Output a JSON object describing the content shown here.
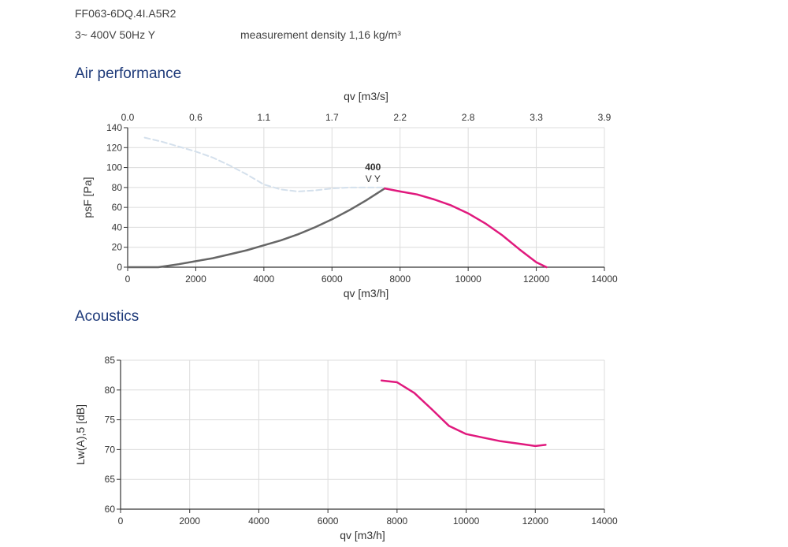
{
  "header": {
    "model": "FF063-6DQ.4I.A5R2",
    "voltage": "3~ 400V 50Hz Y",
    "density": "measurement density 1,16 kg/m³"
  },
  "sections": {
    "air_performance": "Air performance",
    "acoustics": "Acoustics"
  },
  "chart_data": [
    {
      "type": "line",
      "title": "Air performance",
      "xlabel": "qv [m3/h]",
      "x2label": "qv [m3/s]",
      "ylabel": "psF [Pa]",
      "xlim": [
        0,
        14000
      ],
      "ylim": [
        0,
        140
      ],
      "xticks": [
        "0",
        "2000",
        "4000",
        "6000",
        "8000",
        "10000",
        "12000",
        "14000"
      ],
      "yticks": [
        "0",
        "20",
        "40",
        "60",
        "80",
        "100",
        "120",
        "140"
      ],
      "x2ticks": [
        "0.0",
        "0.6",
        "1.1",
        "1.7",
        "2.2",
        "2.8",
        "3.3",
        "3.9"
      ],
      "grid": true,
      "annotation": {
        "line1": "400",
        "line2": "V Y",
        "color": "#e0197d"
      },
      "series": [
        {
          "style": "dashed-lightblue",
          "color": "#d4e0ec",
          "x": [
            500,
            1000,
            1500,
            2000,
            2500,
            3000,
            3500,
            4000,
            4500,
            5000,
            5500,
            6000,
            6500,
            7000,
            7500
          ],
          "y": [
            130,
            126,
            121,
            116,
            110,
            102,
            93,
            83,
            78,
            76,
            77,
            79,
            80,
            80,
            80
          ]
        },
        {
          "style": "solid-gray",
          "color": "#666666",
          "x": [
            0,
            900,
            1500,
            2000,
            2500,
            3000,
            3500,
            4000,
            4500,
            5000,
            5500,
            6000,
            6500,
            7000,
            7550
          ],
          "y": [
            0,
            0,
            3,
            6,
            9,
            13,
            17,
            22,
            27,
            33,
            40,
            48,
            57,
            67,
            79
          ]
        },
        {
          "style": "solid-magenta",
          "color": "#e0197d",
          "x": [
            7550,
            8000,
            8500,
            9000,
            9500,
            10000,
            10500,
            11000,
            11500,
            12000,
            12300
          ],
          "y": [
            79,
            76,
            73,
            68,
            62,
            54,
            44,
            32,
            18,
            5,
            0
          ]
        }
      ]
    },
    {
      "type": "line",
      "title": "Acoustics",
      "xlabel": "qv [m3/h]",
      "ylabel": "Lw(A),5 [dB]",
      "xlim": [
        0,
        14000
      ],
      "ylim": [
        60,
        85
      ],
      "xticks": [
        "0",
        "2000",
        "4000",
        "6000",
        "8000",
        "10000",
        "12000",
        "14000"
      ],
      "yticks": [
        "60",
        "65",
        "70",
        "75",
        "80",
        "85"
      ],
      "grid": true,
      "series": [
        {
          "style": "solid-magenta",
          "color": "#e0197d",
          "x": [
            7550,
            8000,
            8500,
            9000,
            9500,
            10000,
            10500,
            11000,
            11500,
            12000,
            12300
          ],
          "y": [
            81.6,
            81.3,
            79.5,
            76.8,
            74.0,
            72.6,
            72.0,
            71.4,
            71.0,
            70.6,
            70.8
          ]
        }
      ]
    }
  ]
}
